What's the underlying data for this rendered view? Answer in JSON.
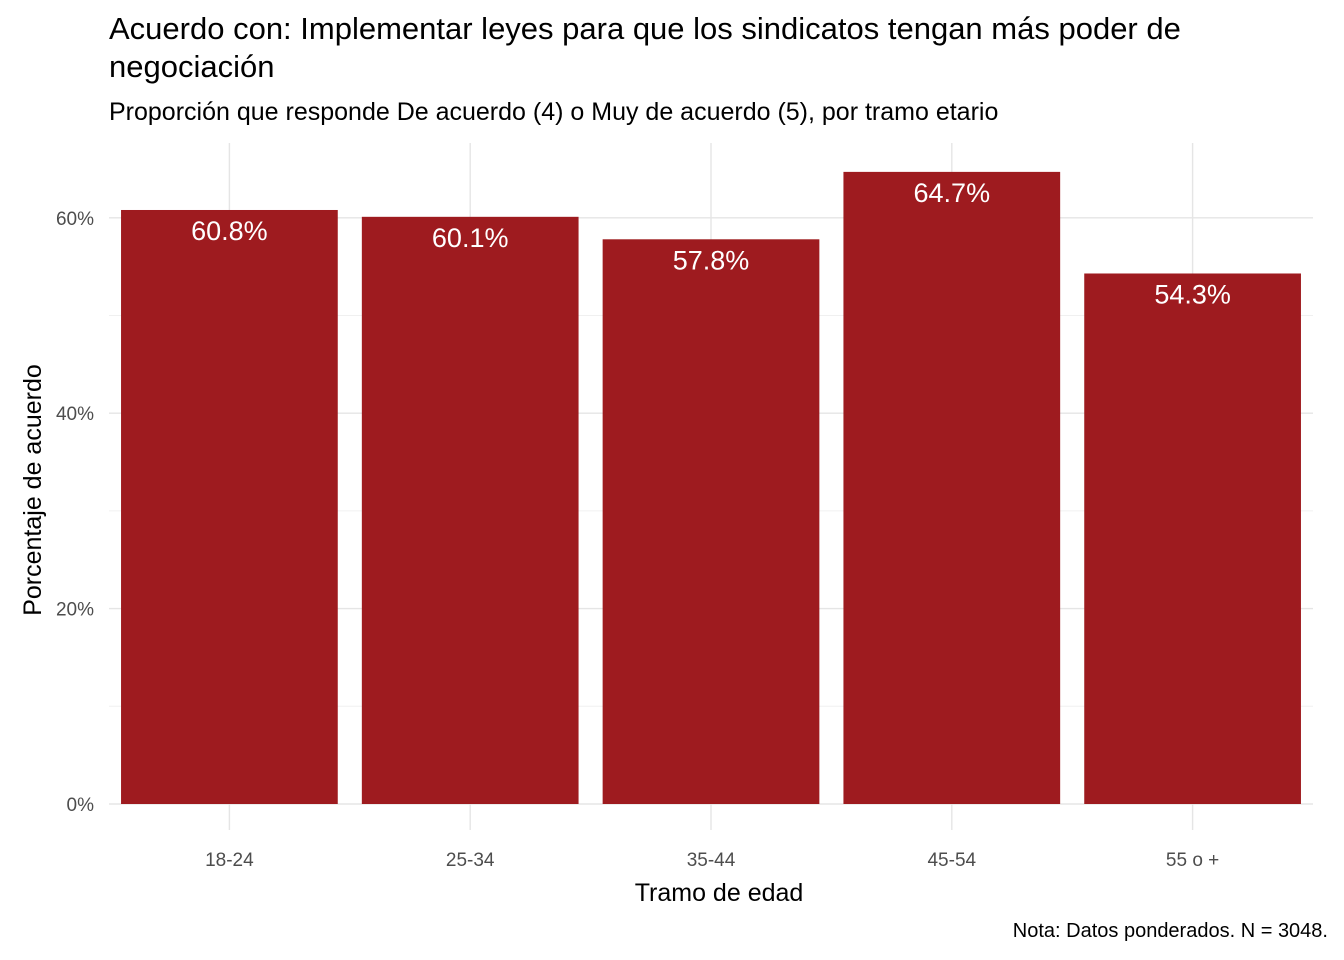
{
  "chart_data": {
    "type": "bar",
    "title": "Acuerdo con: Implementar leyes para que los sindicatos tengan más poder de negociación",
    "subtitle": "Proporción que responde De acuerdo (4) o Muy de acuerdo (5), por tramo etario",
    "xlabel": "Tramo de edad",
    "ylabel": "Porcentaje de acuerdo",
    "caption": "Nota: Datos ponderados. N = 3048.",
    "categories": [
      "18-24",
      "25-34",
      "35-44",
      "45-54",
      "55 o +"
    ],
    "values": [
      60.8,
      60.1,
      57.8,
      64.7,
      54.3
    ],
    "value_labels": [
      "60.8%",
      "60.1%",
      "57.8%",
      "64.7%",
      "54.3%"
    ],
    "ylim": [
      0,
      68
    ],
    "yticks": [
      0,
      20,
      40,
      60
    ],
    "ytick_labels": [
      "0%",
      "20%",
      "40%",
      "60%"
    ],
    "bar_color": "#9E1B1F",
    "grid": true,
    "legend": "none"
  }
}
